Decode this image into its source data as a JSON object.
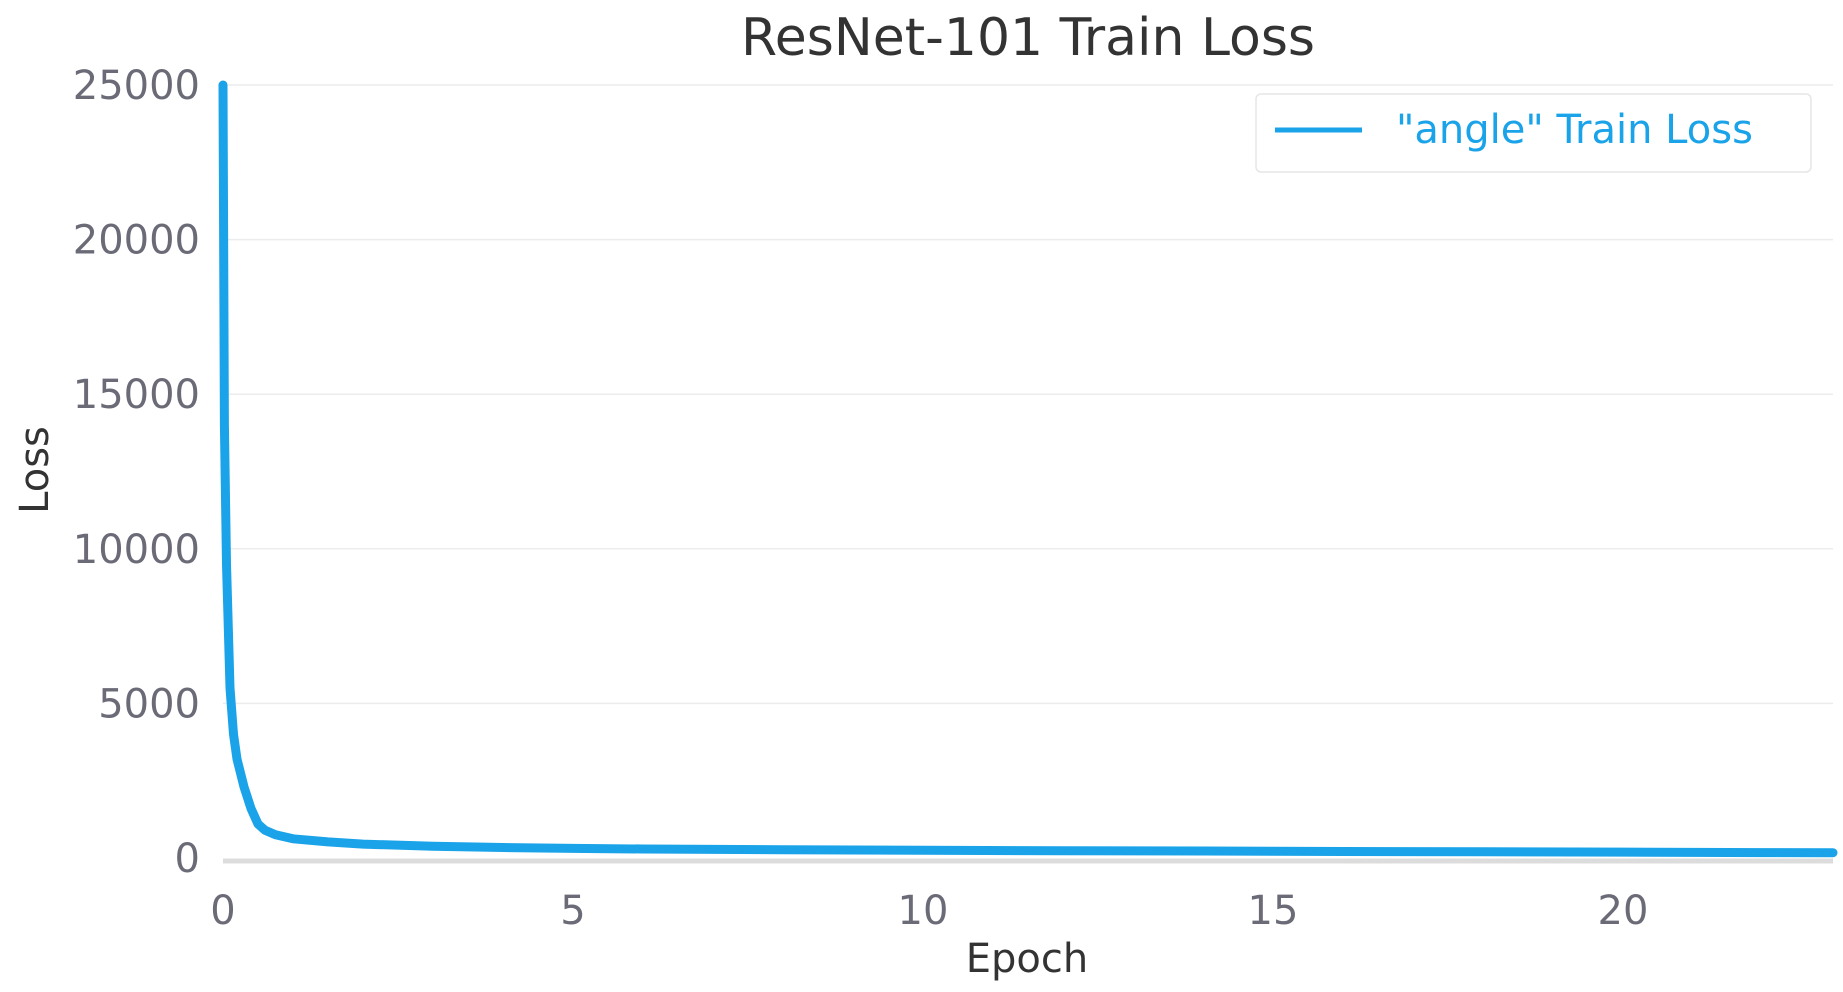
{
  "chart_data": {
    "type": "line",
    "title": "ResNet-101 Train Loss",
    "xlabel": "Epoch",
    "ylabel": "Loss",
    "xlim": [
      0,
      23
    ],
    "ylim": [
      0,
      25000
    ],
    "xticks": [
      0,
      5,
      10,
      15,
      20
    ],
    "yticks": [
      0,
      5000,
      10000,
      15000,
      20000,
      25000
    ],
    "grid": "horizontal",
    "legend_position": "top-right",
    "series": [
      {
        "name": "\"angle\" Train Loss",
        "color": "#1aa3e8",
        "x": [
          0,
          0.02,
          0.05,
          0.1,
          0.15,
          0.2,
          0.3,
          0.4,
          0.5,
          0.6,
          0.75,
          1,
          1.5,
          2,
          3,
          4,
          5,
          6,
          8,
          10,
          12,
          14,
          16,
          18,
          20,
          21,
          22,
          23
        ],
        "y": [
          25000,
          14000,
          9500,
          5500,
          4000,
          3200,
          2300,
          1600,
          1100,
          900,
          750,
          620,
          520,
          450,
          380,
          340,
          310,
          290,
          265,
          250,
          235,
          225,
          210,
          200,
          190,
          180,
          175,
          170
        ]
      }
    ]
  }
}
